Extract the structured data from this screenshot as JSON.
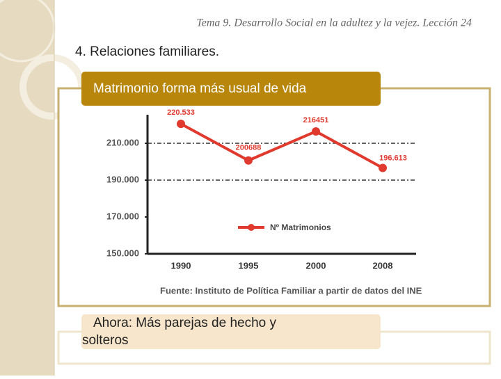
{
  "header": "Tema 9. Desarrollo Social en la adultez y la vejez.  Lección 24",
  "heading": "4. Relaciones familiares.",
  "box_title": "Matrimonio forma más usual de vida",
  "note": [
    "Ahora: Más parejas de hecho y",
    "solteros"
  ],
  "chart_data": {
    "type": "line",
    "categories": [
      "1990",
      "1995",
      "2000",
      "2008"
    ],
    "series": [
      {
        "name": "Nº Matrimonios",
        "color": "#e03a2e",
        "values": [
          220533,
          200688,
          216451,
          196613
        ],
        "value_labels": [
          "220.533",
          "200688",
          "216451",
          "196.613"
        ]
      }
    ],
    "ylim": [
      150000,
      225500
    ],
    "yticks": [
      {
        "value": 150000,
        "label": "150.000"
      },
      {
        "value": 170000,
        "label": "170.000"
      },
      {
        "value": 190000,
        "label": "190.000"
      },
      {
        "value": 210000,
        "label": "210.000"
      }
    ],
    "grid_lines": [
      190000,
      210000
    ],
    "legend": "center",
    "source": "Fuente: Instituto de Política Familiar a partir de datos del INE"
  }
}
